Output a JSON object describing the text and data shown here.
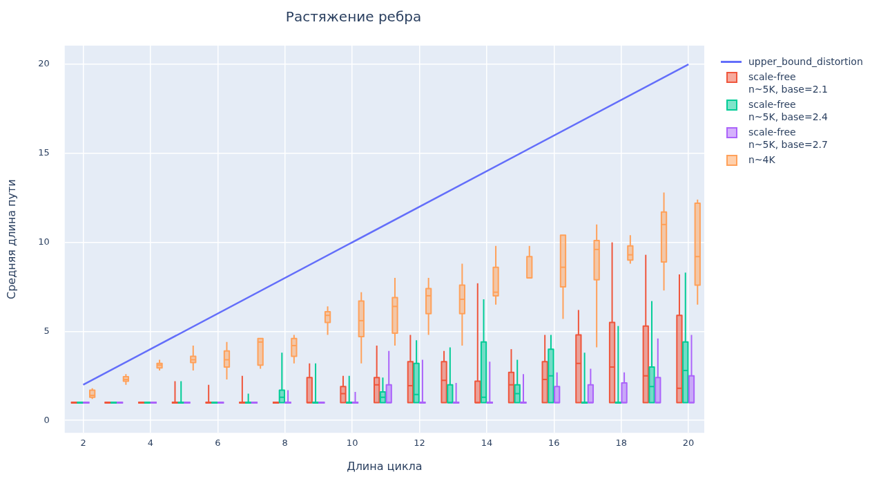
{
  "chart_data": {
    "type": "box",
    "title": "Растяжение ребра",
    "xlabel": "Длина цикла",
    "ylabel": "Средняя длина пути",
    "xlim": [
      1.45,
      20.47
    ],
    "xticks": [
      2,
      4,
      6,
      8,
      10,
      12,
      14,
      16,
      18,
      20
    ],
    "ylim": [
      -0.7,
      21.05
    ],
    "yticks": [
      0,
      5,
      10,
      15,
      20
    ],
    "grid": true,
    "legend": "right",
    "series": [
      {
        "name": "upper_bound_distortion",
        "type": "line",
        "color": "#636efa",
        "x": [
          2,
          20
        ],
        "values": [
          2,
          20
        ]
      },
      {
        "name": "scale-free\nn~5K, base=2.1",
        "color": "#ef553b",
        "x": [
          2,
          3,
          4,
          5,
          6,
          7,
          8,
          9,
          10,
          11,
          12,
          13,
          14,
          15,
          16,
          17,
          18,
          19,
          20
        ],
        "boxes": [
          {
            "low": 1,
            "q1": 1,
            "median": 1,
            "q3": 1,
            "high": 1
          },
          {
            "low": 1,
            "q1": 1,
            "median": 1,
            "q3": 1,
            "high": 1
          },
          {
            "low": 1,
            "q1": 1,
            "median": 1,
            "q3": 1,
            "high": 1
          },
          {
            "low": 1,
            "q1": 1,
            "median": 1,
            "q3": 1,
            "high": 2.2
          },
          {
            "low": 1,
            "q1": 1,
            "median": 1,
            "q3": 1,
            "high": 2
          },
          {
            "low": 1,
            "q1": 1,
            "median": 1,
            "q3": 1,
            "high": 2.5
          },
          {
            "low": 1,
            "q1": 1,
            "median": 1,
            "q3": 1,
            "high": 1
          },
          {
            "low": 1,
            "q1": 1,
            "median": 1,
            "q3": 2.4,
            "high": 3.2
          },
          {
            "low": 1,
            "q1": 1,
            "median": 1.5,
            "q3": 1.9,
            "high": 2.5
          },
          {
            "low": 1,
            "q1": 1,
            "median": 2,
            "q3": 2.4,
            "high": 4.2
          },
          {
            "low": 1,
            "q1": 1,
            "median": 1.95,
            "q3": 3.3,
            "high": 4.8
          },
          {
            "low": 1,
            "q1": 1,
            "median": 2.25,
            "q3": 3.3,
            "high": 3.9
          },
          {
            "low": 1,
            "q1": 1,
            "median": 1,
            "q3": 2.2,
            "high": 7.7
          },
          {
            "low": 1,
            "q1": 1,
            "median": 2,
            "q3": 2.7,
            "high": 4
          },
          {
            "low": 1,
            "q1": 1,
            "median": 2.3,
            "q3": 3.3,
            "high": 4.8
          },
          {
            "low": 1,
            "q1": 1,
            "median": 3.2,
            "q3": 4.8,
            "high": 6.2
          },
          {
            "low": 1,
            "q1": 1,
            "median": 3,
            "q3": 5.5,
            "high": 10
          },
          {
            "low": 1,
            "q1": 1,
            "median": 2.5,
            "q3": 5.3,
            "high": 9.3
          },
          {
            "low": 1,
            "q1": 1,
            "median": 1.8,
            "q3": 5.9,
            "high": 8.2
          }
        ]
      },
      {
        "name": "scale-free\nn~5K, base=2.4",
        "color": "#00cc96",
        "x": [
          2,
          3,
          4,
          5,
          6,
          7,
          8,
          9,
          10,
          11,
          12,
          13,
          14,
          15,
          16,
          17,
          18,
          19,
          20
        ],
        "boxes": [
          {
            "low": 1,
            "q1": 1,
            "median": 1,
            "q3": 1,
            "high": 1
          },
          {
            "low": 1,
            "q1": 1,
            "median": 1,
            "q3": 1,
            "high": 1
          },
          {
            "low": 1,
            "q1": 1,
            "median": 1,
            "q3": 1,
            "high": 1
          },
          {
            "low": 1,
            "q1": 1,
            "median": 1,
            "q3": 1,
            "high": 2.2
          },
          {
            "low": 1,
            "q1": 1,
            "median": 1,
            "q3": 1,
            "high": 1
          },
          {
            "low": 1,
            "q1": 1,
            "median": 1,
            "q3": 1,
            "high": 1.5
          },
          {
            "low": 1,
            "q1": 1,
            "median": 1.3,
            "q3": 1.7,
            "high": 3.8
          },
          {
            "low": 1,
            "q1": 1,
            "median": 1,
            "q3": 1,
            "high": 3.2
          },
          {
            "low": 1,
            "q1": 1,
            "median": 1,
            "q3": 1,
            "high": 2.5
          },
          {
            "low": 1,
            "q1": 1,
            "median": 1.3,
            "q3": 1.6,
            "high": 2.4
          },
          {
            "low": 1,
            "q1": 1,
            "median": 1.45,
            "q3": 3.2,
            "high": 4.5
          },
          {
            "low": 1,
            "q1": 1,
            "median": 1,
            "q3": 2,
            "high": 4.1
          },
          {
            "low": 1,
            "q1": 1,
            "median": 1.3,
            "q3": 4.4,
            "high": 6.8
          },
          {
            "low": 1,
            "q1": 1,
            "median": 1.5,
            "q3": 2,
            "high": 3.4
          },
          {
            "low": 1,
            "q1": 1,
            "median": 2.5,
            "q3": 4,
            "high": 4.8
          },
          {
            "low": 1,
            "q1": 1,
            "median": 1,
            "q3": 1,
            "high": 3.8
          },
          {
            "low": 1,
            "q1": 1,
            "median": 1,
            "q3": 1,
            "high": 5.3
          },
          {
            "low": 1,
            "q1": 1,
            "median": 1.9,
            "q3": 3,
            "high": 6.7
          },
          {
            "low": 1,
            "q1": 1,
            "median": 2.8,
            "q3": 4.4,
            "high": 8.3
          }
        ]
      },
      {
        "name": "scale-free\nn~5K, base=2.7",
        "color": "#ab63fa",
        "x": [
          2,
          3,
          4,
          5,
          6,
          7,
          8,
          9,
          10,
          11,
          12,
          13,
          14,
          15,
          16,
          17,
          18,
          19,
          20
        ],
        "boxes": [
          {
            "low": 1,
            "q1": 1,
            "median": 1,
            "q3": 1,
            "high": 1
          },
          {
            "low": 1,
            "q1": 1,
            "median": 1,
            "q3": 1,
            "high": 1
          },
          {
            "low": 1,
            "q1": 1,
            "median": 1,
            "q3": 1,
            "high": 1
          },
          {
            "low": 1,
            "q1": 1,
            "median": 1,
            "q3": 1,
            "high": 1
          },
          {
            "low": 1,
            "q1": 1,
            "median": 1,
            "q3": 1,
            "high": 1
          },
          {
            "low": 1,
            "q1": 1,
            "median": 1,
            "q3": 1,
            "high": 1
          },
          {
            "low": 1,
            "q1": 1,
            "median": 1,
            "q3": 1,
            "high": 1.7
          },
          {
            "low": 1,
            "q1": 1,
            "median": 1,
            "q3": 1,
            "high": 1
          },
          {
            "low": 1,
            "q1": 1,
            "median": 1,
            "q3": 1,
            "high": 1.6
          },
          {
            "low": 1,
            "q1": 1,
            "median": 1,
            "q3": 2,
            "high": 3.9
          },
          {
            "low": 1,
            "q1": 1,
            "median": 1,
            "q3": 1,
            "high": 3.4
          },
          {
            "low": 1,
            "q1": 1,
            "median": 1,
            "q3": 1,
            "high": 2.1
          },
          {
            "low": 1,
            "q1": 1,
            "median": 1,
            "q3": 1,
            "high": 3.3
          },
          {
            "low": 1,
            "q1": 1,
            "median": 1,
            "q3": 1,
            "high": 2.6
          },
          {
            "low": 1,
            "q1": 1,
            "median": 1,
            "q3": 1.9,
            "high": 2.7
          },
          {
            "low": 1,
            "q1": 1,
            "median": 1,
            "q3": 2,
            "high": 2.9
          },
          {
            "low": 1,
            "q1": 1,
            "median": 1,
            "q3": 2.1,
            "high": 2.7
          },
          {
            "low": 1,
            "q1": 1,
            "median": 1,
            "q3": 2.4,
            "high": 4.6
          },
          {
            "low": 1,
            "q1": 1,
            "median": 1,
            "q3": 2.5,
            "high": 4.8
          }
        ]
      },
      {
        "name": "n~4K",
        "color": "#ffa15a",
        "x": [
          2,
          3,
          4,
          5,
          6,
          7,
          8,
          9,
          10,
          11,
          12,
          13,
          14,
          15,
          16,
          17,
          18,
          19,
          20
        ],
        "boxes": [
          {
            "low": 1.2,
            "q1": 1.3,
            "median": 1.4,
            "q3": 1.7,
            "high": 1.8
          },
          {
            "low": 2,
            "q1": 2.2,
            "median": 2.3,
            "q3": 2.45,
            "high": 2.6
          },
          {
            "low": 2.8,
            "q1": 2.95,
            "median": 3.1,
            "q3": 3.2,
            "high": 3.4
          },
          {
            "low": 2.8,
            "q1": 3.25,
            "median": 3.4,
            "q3": 3.6,
            "high": 4.2
          },
          {
            "low": 2.3,
            "q1": 3,
            "median": 3.4,
            "q3": 3.9,
            "high": 4.4
          },
          {
            "low": 2.9,
            "q1": 3.1,
            "median": 4.4,
            "q3": 4.6,
            "high": 4.6
          },
          {
            "low": 3.2,
            "q1": 3.6,
            "median": 4.2,
            "q3": 4.6,
            "high": 4.8
          },
          {
            "low": 4.8,
            "q1": 5.5,
            "median": 5.9,
            "q3": 6.1,
            "high": 6.4
          },
          {
            "low": 3.2,
            "q1": 4.7,
            "median": 5.6,
            "q3": 6.7,
            "high": 7.2
          },
          {
            "low": 4.2,
            "q1": 4.9,
            "median": 6.4,
            "q3": 6.9,
            "high": 8
          },
          {
            "low": 4.8,
            "q1": 6,
            "median": 7,
            "q3": 7.4,
            "high": 8
          },
          {
            "low": 4.2,
            "q1": 6,
            "median": 6.8,
            "q3": 7.6,
            "high": 8.8
          },
          {
            "low": 6.5,
            "q1": 7,
            "median": 7.2,
            "q3": 8.6,
            "high": 9.8
          },
          {
            "low": 8,
            "q1": 8,
            "median": 8,
            "q3": 9.2,
            "high": 9.8
          },
          {
            "low": 5.7,
            "q1": 7.5,
            "median": 8.6,
            "q3": 10.4,
            "high": 10.4
          },
          {
            "low": 4.1,
            "q1": 7.9,
            "median": 9.6,
            "q3": 10.1,
            "high": 11
          },
          {
            "low": 8.8,
            "q1": 9,
            "median": 9.3,
            "q3": 9.8,
            "high": 10.4
          },
          {
            "low": 7.3,
            "q1": 8.9,
            "median": 11,
            "q3": 11.7,
            "high": 12.8
          },
          {
            "low": 6.5,
            "q1": 7.6,
            "median": 9.2,
            "q3": 12.2,
            "high": 12.4
          }
        ]
      }
    ]
  }
}
